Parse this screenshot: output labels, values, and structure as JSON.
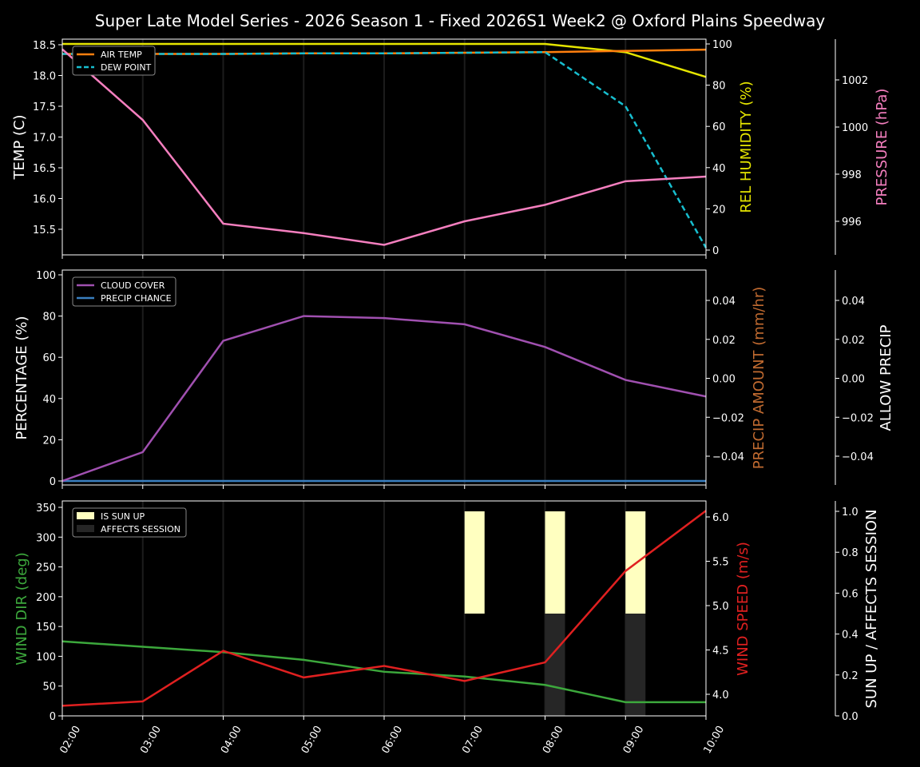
{
  "title": "Super Late Model Series - 2026 Season 1 - Fixed 2026S1 Week2 @ Oxford Plains Speedway",
  "colors": {
    "air_temp": "#ff7f0e",
    "dew_point": "#17becf",
    "humidity": "#e5e500",
    "pressure": "#f57fbf",
    "cloud_cover": "#a050b0",
    "precip_chance": "#3a7fc0",
    "precip_amount": "#c06a30",
    "wind_dir": "#3ca83c",
    "wind_speed": "#e02020",
    "sun_up": "#ffffc0",
    "affects_session": "#262626"
  },
  "chart_data": [
    {
      "type": "line",
      "title": "Super Late Model Series - 2026 Season 1 - Fixed 2026S1 Week2 @ Oxford Plains Speedway",
      "x": [
        "02:00",
        "03:00",
        "04:00",
        "05:00",
        "06:00",
        "07:00",
        "08:00",
        "09:00",
        "10:00"
      ],
      "ylabel": "TEMP (C)",
      "ylim": [
        15.1,
        18.55
      ],
      "yticks": [
        "15.5",
        "16.0",
        "16.5",
        "17.0",
        "17.5",
        "18.0",
        "18.5"
      ],
      "legend": [
        "AIR TEMP",
        "DEW POINT"
      ],
      "series": [
        {
          "name": "AIR TEMP",
          "axis": "TEMP (C)",
          "values": [
            18.35,
            18.35,
            18.35,
            18.36,
            18.36,
            18.37,
            18.38,
            18.4,
            18.42
          ]
        },
        {
          "name": "DEW POINT",
          "axis": "TEMP (C)",
          "style": "dashed",
          "values": [
            18.35,
            18.35,
            18.35,
            18.36,
            18.36,
            18.37,
            18.38,
            17.5,
            15.2
          ]
        },
        {
          "name": "REL HUMIDITY",
          "axis": "REL HUMIDITY (%)",
          "values": [
            100,
            100,
            100,
            100,
            100,
            100,
            100,
            96,
            84
          ]
        },
        {
          "name": "PRESSURE",
          "axis": "PRESSURE (hPa)",
          "values": [
            1003.3,
            1000.3,
            995.9,
            995.5,
            995.0,
            996.0,
            996.7,
            997.7,
            997.9
          ]
        }
      ],
      "right_axes": [
        {
          "label": "REL HUMIDITY (%)",
          "ticks": [
            "0",
            "20",
            "40",
            "60",
            "80",
            "100"
          ],
          "ylim": [
            -1,
            102
          ]
        },
        {
          "label": "PRESSURE (hPa)",
          "ticks": [
            "996",
            "998",
            "1000",
            "1002"
          ],
          "ylim": [
            994.4,
            1003.5
          ]
        }
      ]
    },
    {
      "type": "line",
      "x": [
        "02:00",
        "03:00",
        "04:00",
        "05:00",
        "06:00",
        "07:00",
        "08:00",
        "09:00",
        "10:00"
      ],
      "ylabel": "PERCENTAGE (%)",
      "ylim": [
        -2,
        102
      ],
      "yticks": [
        "0",
        "20",
        "40",
        "60",
        "80",
        "100"
      ],
      "legend": [
        "CLOUD COVER",
        "PRECIP CHANCE"
      ],
      "series": [
        {
          "name": "CLOUD COVER",
          "values": [
            0,
            14,
            68,
            80,
            79,
            76,
            65,
            49,
            41
          ]
        },
        {
          "name": "PRECIP CHANCE",
          "values": [
            0,
            0,
            0,
            0,
            0,
            0,
            0,
            0,
            0
          ]
        }
      ],
      "right_axes": [
        {
          "label": "PRECIP AMOUNT (mm/hr)",
          "ticks": [
            "−0.04",
            "−0.02",
            "0.00",
            "0.02",
            "0.04"
          ],
          "ylim": [
            -0.055,
            0.055
          ]
        },
        {
          "label": "ALLOW PRECIP",
          "ticks": [
            "−0.04",
            "−0.02",
            "0.00",
            "0.02",
            "0.04"
          ],
          "ylim": [
            -0.055,
            0.055
          ]
        }
      ]
    },
    {
      "type": "line",
      "x": [
        "02:00",
        "03:00",
        "04:00",
        "05:00",
        "06:00",
        "07:00",
        "08:00",
        "09:00",
        "10:00"
      ],
      "xlabel": "",
      "ylabel": "WIND DIR (deg)",
      "ylim": [
        0,
        360
      ],
      "yticks": [
        "0",
        "50",
        "100",
        "150",
        "200",
        "250",
        "300",
        "350"
      ],
      "legend": [
        "IS SUN UP",
        "AFFECTS SESSION"
      ],
      "series": [
        {
          "name": "WIND DIR",
          "axis": "WIND DIR (deg)",
          "values": [
            125,
            116,
            107,
            94,
            74,
            66,
            52,
            23,
            23
          ]
        },
        {
          "name": "WIND SPEED",
          "axis": "WIND SPEED (m/s)",
          "values": [
            3.87,
            3.92,
            4.49,
            4.19,
            4.32,
            4.15,
            4.36,
            5.39,
            6.07
          ]
        },
        {
          "name": "IS SUN UP",
          "type": "bar",
          "axis": "SUN UP / AFFECTS SESSION",
          "values": [
            0,
            0,
            0,
            0,
            0,
            1,
            1,
            1,
            0
          ]
        },
        {
          "name": "AFFECTS SESSION",
          "type": "bar",
          "axis": "SUN UP / AFFECTS SESSION",
          "values": [
            0,
            0,
            0,
            0,
            0,
            0,
            1,
            1,
            0
          ]
        }
      ],
      "right_axes": [
        {
          "label": "WIND SPEED (m/s)",
          "ticks": [
            "4.0",
            "4.5",
            "5.0",
            "5.5",
            "6.0"
          ],
          "ylim": [
            3.77,
            6.13
          ]
        },
        {
          "label": "SUN UP / AFFECTS SESSION",
          "ticks": [
            "0.0",
            "0.2",
            "0.4",
            "0.6",
            "0.8",
            "1.0"
          ],
          "ylim": [
            0,
            1.05
          ]
        }
      ]
    }
  ]
}
